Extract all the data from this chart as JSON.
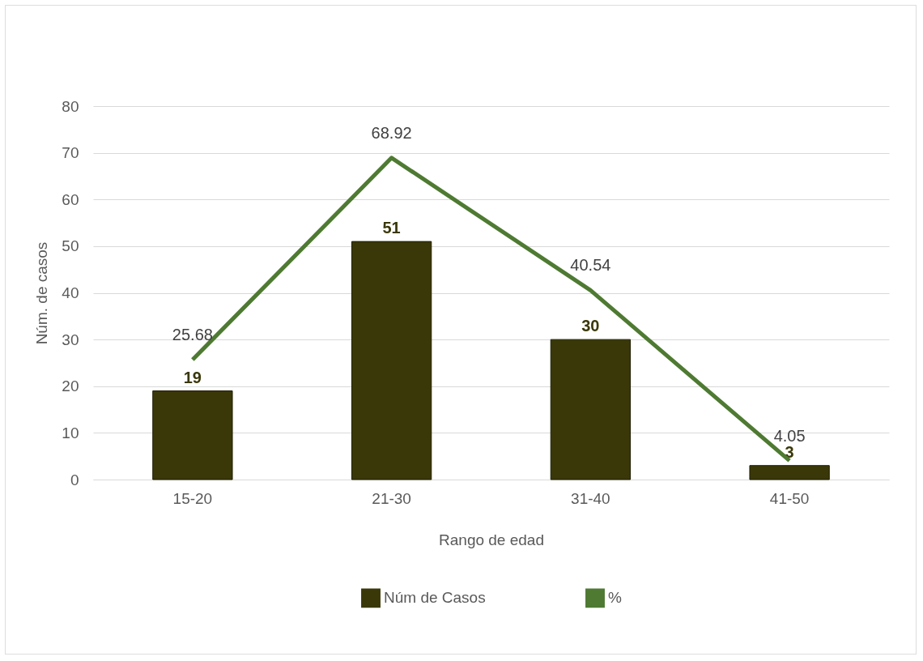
{
  "chart_data": {
    "type": "bar",
    "xlabel": "Rango de edad",
    "ylabel": "Núm. de casos",
    "categories": [
      "15-20",
      "21-30",
      "31-40",
      "41-50"
    ],
    "series": [
      {
        "name": "Núm de Casos",
        "color": "#3a3808",
        "values": [
          19,
          51,
          30,
          3
        ]
      },
      {
        "name": "%",
        "type": "line",
        "color": "#4e7a32",
        "values": [
          25.68,
          68.92,
          40.54,
          4.05
        ]
      }
    ],
    "ylim": [
      0,
      80
    ],
    "yticks": [
      0,
      10,
      20,
      30,
      40,
      50,
      60,
      70,
      80
    ],
    "grid": "y",
    "legend": "bottom",
    "data_labels": true
  }
}
